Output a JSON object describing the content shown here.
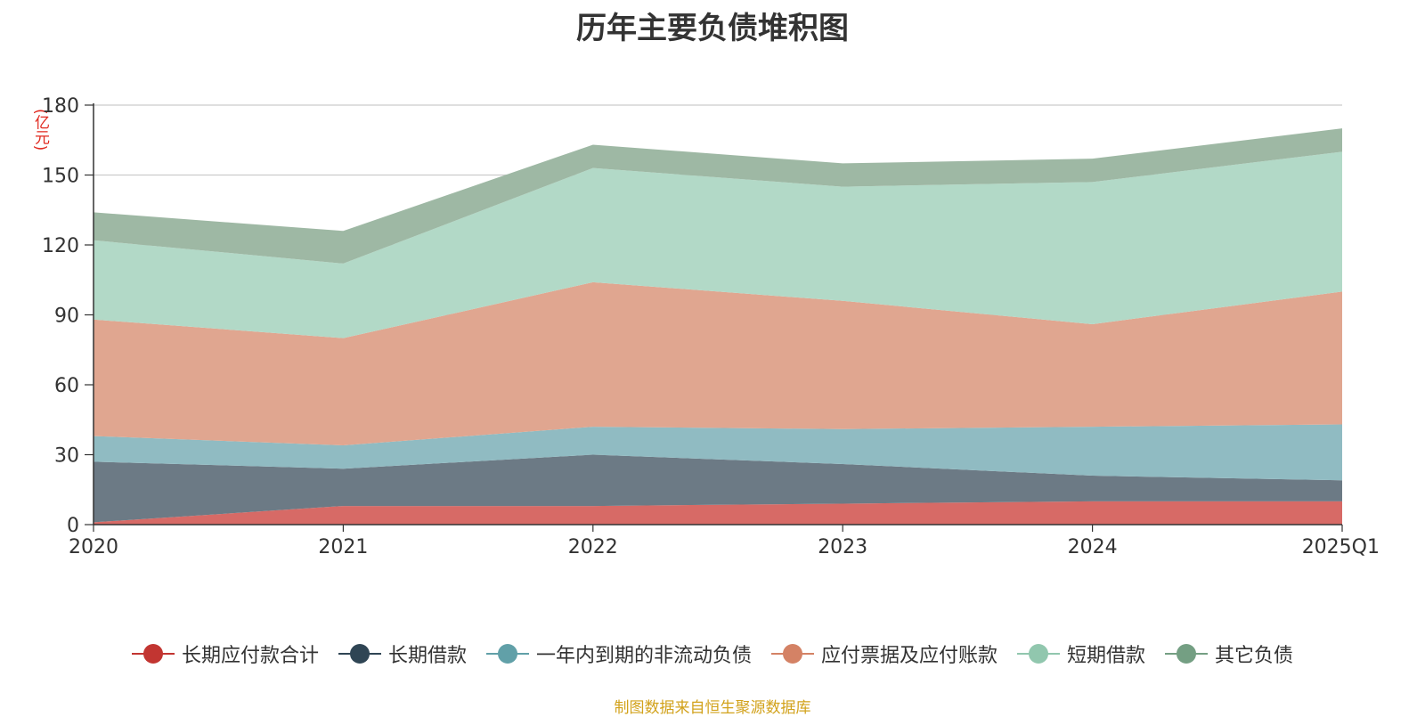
{
  "chart_data": {
    "type": "area",
    "title": "历年主要负债堆积图",
    "unit_label": "(亿元)",
    "stacked": true,
    "categories": [
      "2020",
      "2021",
      "2022",
      "2023",
      "2024",
      "2025Q1"
    ],
    "y_ticks": [
      "0",
      "30",
      "60",
      "90",
      "120",
      "150",
      "180"
    ],
    "ylim": [
      0,
      180
    ],
    "grid": true,
    "legend_position": "bottom",
    "series": [
      {
        "name": "长期应付款合计",
        "values": [
          1,
          8,
          8,
          9,
          10,
          10
        ],
        "color": "#c23531",
        "area_color": "#d76a66"
      },
      {
        "name": "长期借款",
        "values": [
          26,
          16,
          22,
          17,
          11,
          9
        ],
        "color": "#2f4554",
        "area_color": "#6c7a85"
      },
      {
        "name": "一年内到期的非流动负债",
        "values": [
          11,
          10,
          12,
          15,
          21,
          24
        ],
        "color": "#61a0a8",
        "area_color": "#90bbc2"
      },
      {
        "name": "应付票据及应付账款",
        "values": [
          50,
          46,
          62,
          55,
          44,
          57
        ],
        "color": "#d48265",
        "area_color": "#e0a690"
      },
      {
        "name": "短期借款",
        "values": [
          34,
          32,
          49,
          49,
          61,
          60
        ],
        "color": "#91c7ae",
        "area_color": "#b2d9c7"
      },
      {
        "name": "其它负债",
        "values": [
          12,
          14,
          10,
          10,
          10,
          10
        ],
        "color": "#749f83",
        "area_color": "#9eb8a4"
      }
    ],
    "source_note": "制图数据来自恒生聚源数据库"
  }
}
